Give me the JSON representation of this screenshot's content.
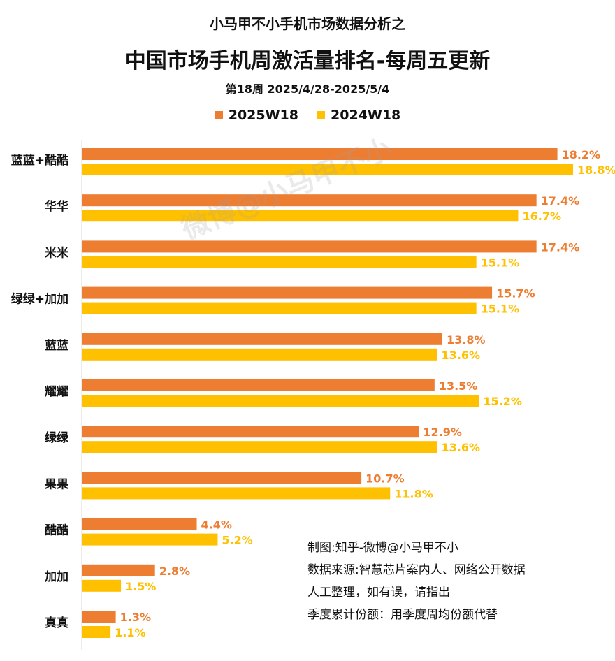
{
  "header": {
    "line1": "小马甲不小手机市场数据分析之",
    "line2": "中国市场手机周激活量排名-每周五更新",
    "line3": "第18周 2025/4/28-2025/5/4"
  },
  "notes": [
    "制图:知乎-微博@小马甲不小",
    "数据来源:智慧芯片案内人、网络公开数据",
    "人工整理，如有误，请指出",
    "季度累计份额：用季度周均份额代替"
  ],
  "watermark": "微博@小马甲不小",
  "colors": {
    "series1": "#ED7D31",
    "series2": "#FFC000",
    "axis": "#d9d9d9"
  },
  "chart_data": {
    "type": "bar",
    "orientation": "horizontal",
    "categories": [
      "蓝蓝+酷酷",
      "华华",
      "米米",
      "绿绿+加加",
      "蓝蓝",
      "耀耀",
      "绿绿",
      "果果",
      "酷酷",
      "加加",
      "真真"
    ],
    "series": [
      {
        "name": "2025W18",
        "values": [
          18.2,
          17.4,
          17.4,
          15.7,
          13.8,
          13.5,
          12.9,
          10.7,
          4.4,
          2.8,
          1.3
        ]
      },
      {
        "name": "2024W18",
        "values": [
          18.8,
          16.7,
          15.1,
          15.1,
          13.6,
          15.2,
          13.6,
          11.8,
          5.2,
          1.5,
          1.1
        ]
      }
    ],
    "value_suffix": "%",
    "xlim": [
      0,
      18.8
    ],
    "legend_position": "top",
    "grid": false
  }
}
